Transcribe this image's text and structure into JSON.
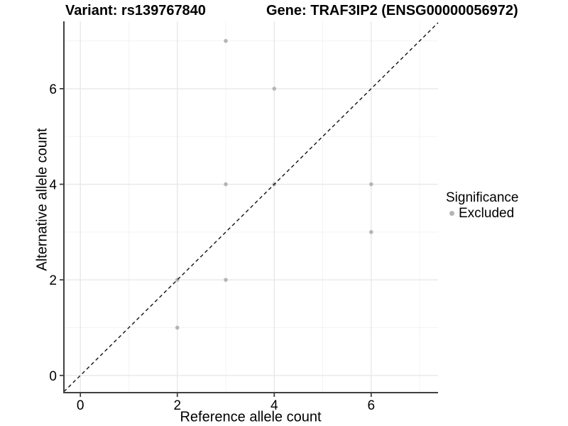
{
  "header": {
    "variant_title": "Variant: rs139767840",
    "gene_title": "Gene: TRAF3IP2 (ENSG00000056972)"
  },
  "legend": {
    "title": "Significance",
    "items": [
      {
        "label": "Excluded",
        "marker_color": "#b5b5b5"
      }
    ]
  },
  "colors": {
    "background": "#ffffff",
    "grid_major": "#e8e8e8",
    "grid_minor": "#f3f3f3",
    "axis_line": "#404040",
    "tick_text": "#000000",
    "identity_line": "#111111",
    "point": "#b5b5b5"
  },
  "chart_data": {
    "type": "scatter",
    "title": "Variant: rs139767840   Gene: TRAF3IP2 (ENSG00000056972)",
    "xlabel": "Reference allele count",
    "ylabel": "Alternative allele count",
    "xlim": [
      -0.34,
      7.38
    ],
    "ylim": [
      -0.36,
      7.41
    ],
    "x_ticks": [
      0,
      2,
      4,
      6
    ],
    "y_ticks": [
      0,
      2,
      4,
      6
    ],
    "x_minor_ticks": [
      1,
      3,
      5,
      7
    ],
    "y_minor_ticks": [
      1,
      3,
      5,
      7
    ],
    "grid": true,
    "legend_position": "right",
    "reference_line": {
      "type": "identity",
      "equation": "y = x",
      "style": "dashed"
    },
    "series": [
      {
        "name": "Excluded",
        "color": "#b5b5b5",
        "points": [
          [
            2,
            1
          ],
          [
            2,
            2
          ],
          [
            3,
            2
          ],
          [
            3,
            4
          ],
          [
            3,
            7
          ],
          [
            4,
            4
          ],
          [
            4,
            6
          ],
          [
            6,
            3
          ],
          [
            6,
            4
          ]
        ]
      }
    ]
  }
}
